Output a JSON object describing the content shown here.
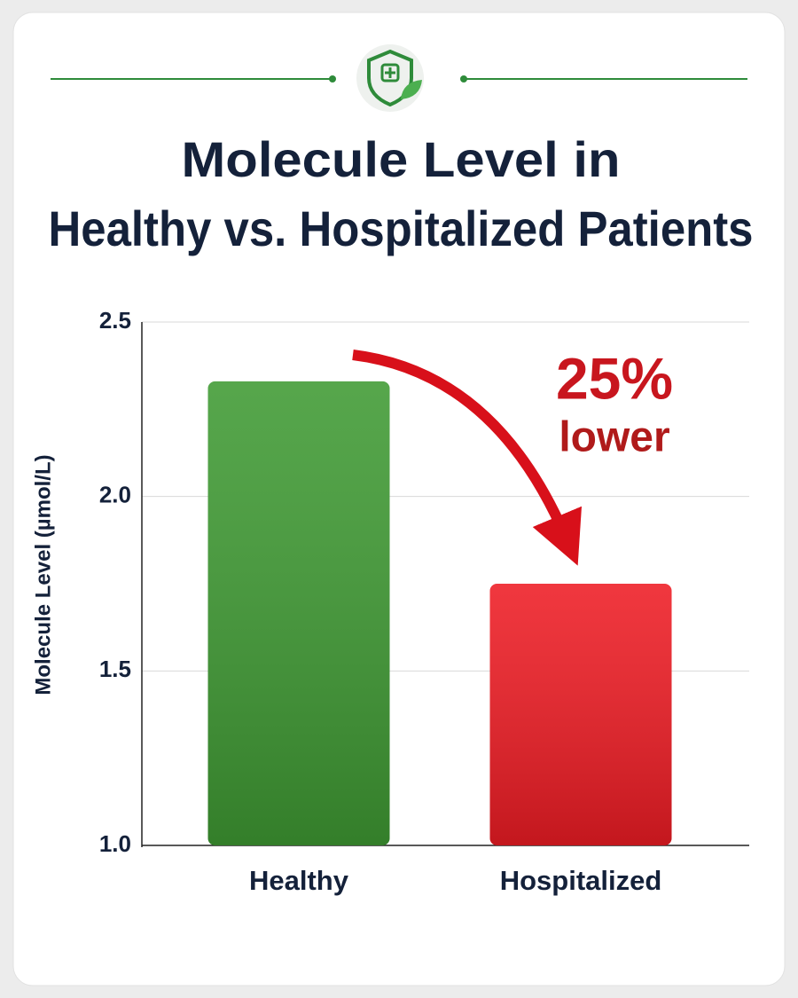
{
  "chart_data": {
    "type": "bar",
    "title": [
      "Molecule Level in",
      "Healthy vs. Hospitalized Patients"
    ],
    "y_label": "Molecule Level (µmol/L)",
    "categories": [
      "Healthy",
      "Hospitalized"
    ],
    "values": [
      2.33,
      1.75
    ],
    "colors": [
      "#3f9a33",
      "#ee1c24"
    ],
    "ylim": [
      1.0,
      2.5
    ],
    "yticks": [
      {
        "value": 1.0,
        "label": "1.0"
      },
      1.5,
      {
        "value": 2.0,
        "label": "2.0"
      },
      2.5
    ],
    "grid": true,
    "annotation": [
      "25%",
      "lower"
    ]
  }
}
